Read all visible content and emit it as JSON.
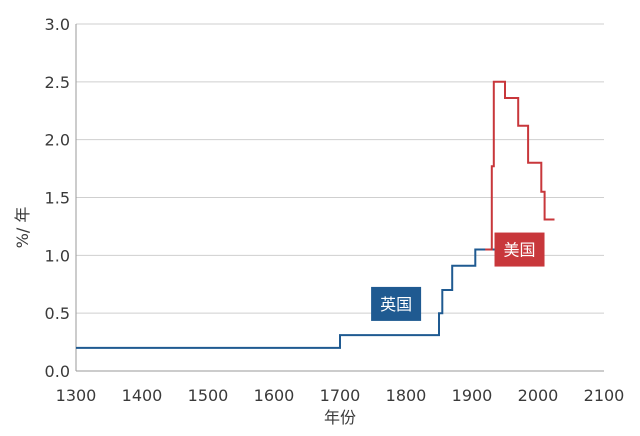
{
  "chart_data": {
    "type": "line",
    "xlabel": "年份",
    "ylabel": "%/ 年",
    "xlim": [
      1300,
      2100
    ],
    "ylim": [
      0,
      3.0
    ],
    "xticks": [
      "1300",
      "1400",
      "1500",
      "1600",
      "1700",
      "1800",
      "1900",
      "2000",
      "2100"
    ],
    "yticks": [
      "0.0",
      "0.5",
      "1.0",
      "1.5",
      "2.0",
      "2.5",
      "3.0"
    ],
    "grid": true,
    "series": [
      {
        "name": "英国",
        "color": "#1f5a91",
        "step": true,
        "x": [
          1300,
          1700,
          1700,
          1850,
          1850,
          1855,
          1855,
          1870,
          1870,
          1905,
          1905,
          1935
        ],
        "y": [
          0.2,
          0.2,
          0.31,
          0.31,
          0.5,
          0.5,
          0.7,
          0.7,
          0.91,
          0.91,
          1.05,
          1.05
        ]
      },
      {
        "name": "美国",
        "color": "#c8373b",
        "step": true,
        "x": [
          1920,
          1930,
          1930,
          1933,
          1933,
          1950,
          1950,
          1970,
          1970,
          1985,
          1985,
          2005,
          2005,
          2010,
          2010,
          2025
        ],
        "y": [
          1.05,
          1.05,
          1.77,
          1.77,
          2.5,
          2.5,
          2.36,
          2.36,
          2.12,
          2.12,
          1.8,
          1.8,
          1.55,
          1.55,
          1.31,
          1.31
        ]
      }
    ],
    "annotations": [
      {
        "text": "英国",
        "x": 1785,
        "y": 0.58,
        "color": "#1f5a91"
      },
      {
        "text": "美国",
        "x": 1972,
        "y": 1.05,
        "color": "#c8373b"
      }
    ]
  }
}
